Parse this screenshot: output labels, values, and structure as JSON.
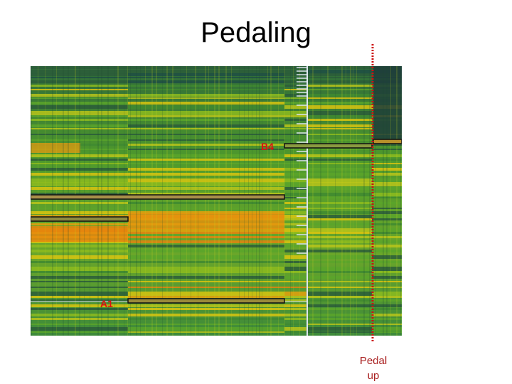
{
  "title": "Pedaling",
  "notes": {
    "upper": "B4",
    "lower": "A1"
  },
  "pedal_label": [
    "Pedal",
    "up"
  ],
  "colors": {
    "note_label": "#dd1111",
    "pedal_line": "#cc1111",
    "pedal_text": "#aa2222",
    "note_bar_edge": "#111111",
    "cursor_line": "#dde6ee"
  }
}
